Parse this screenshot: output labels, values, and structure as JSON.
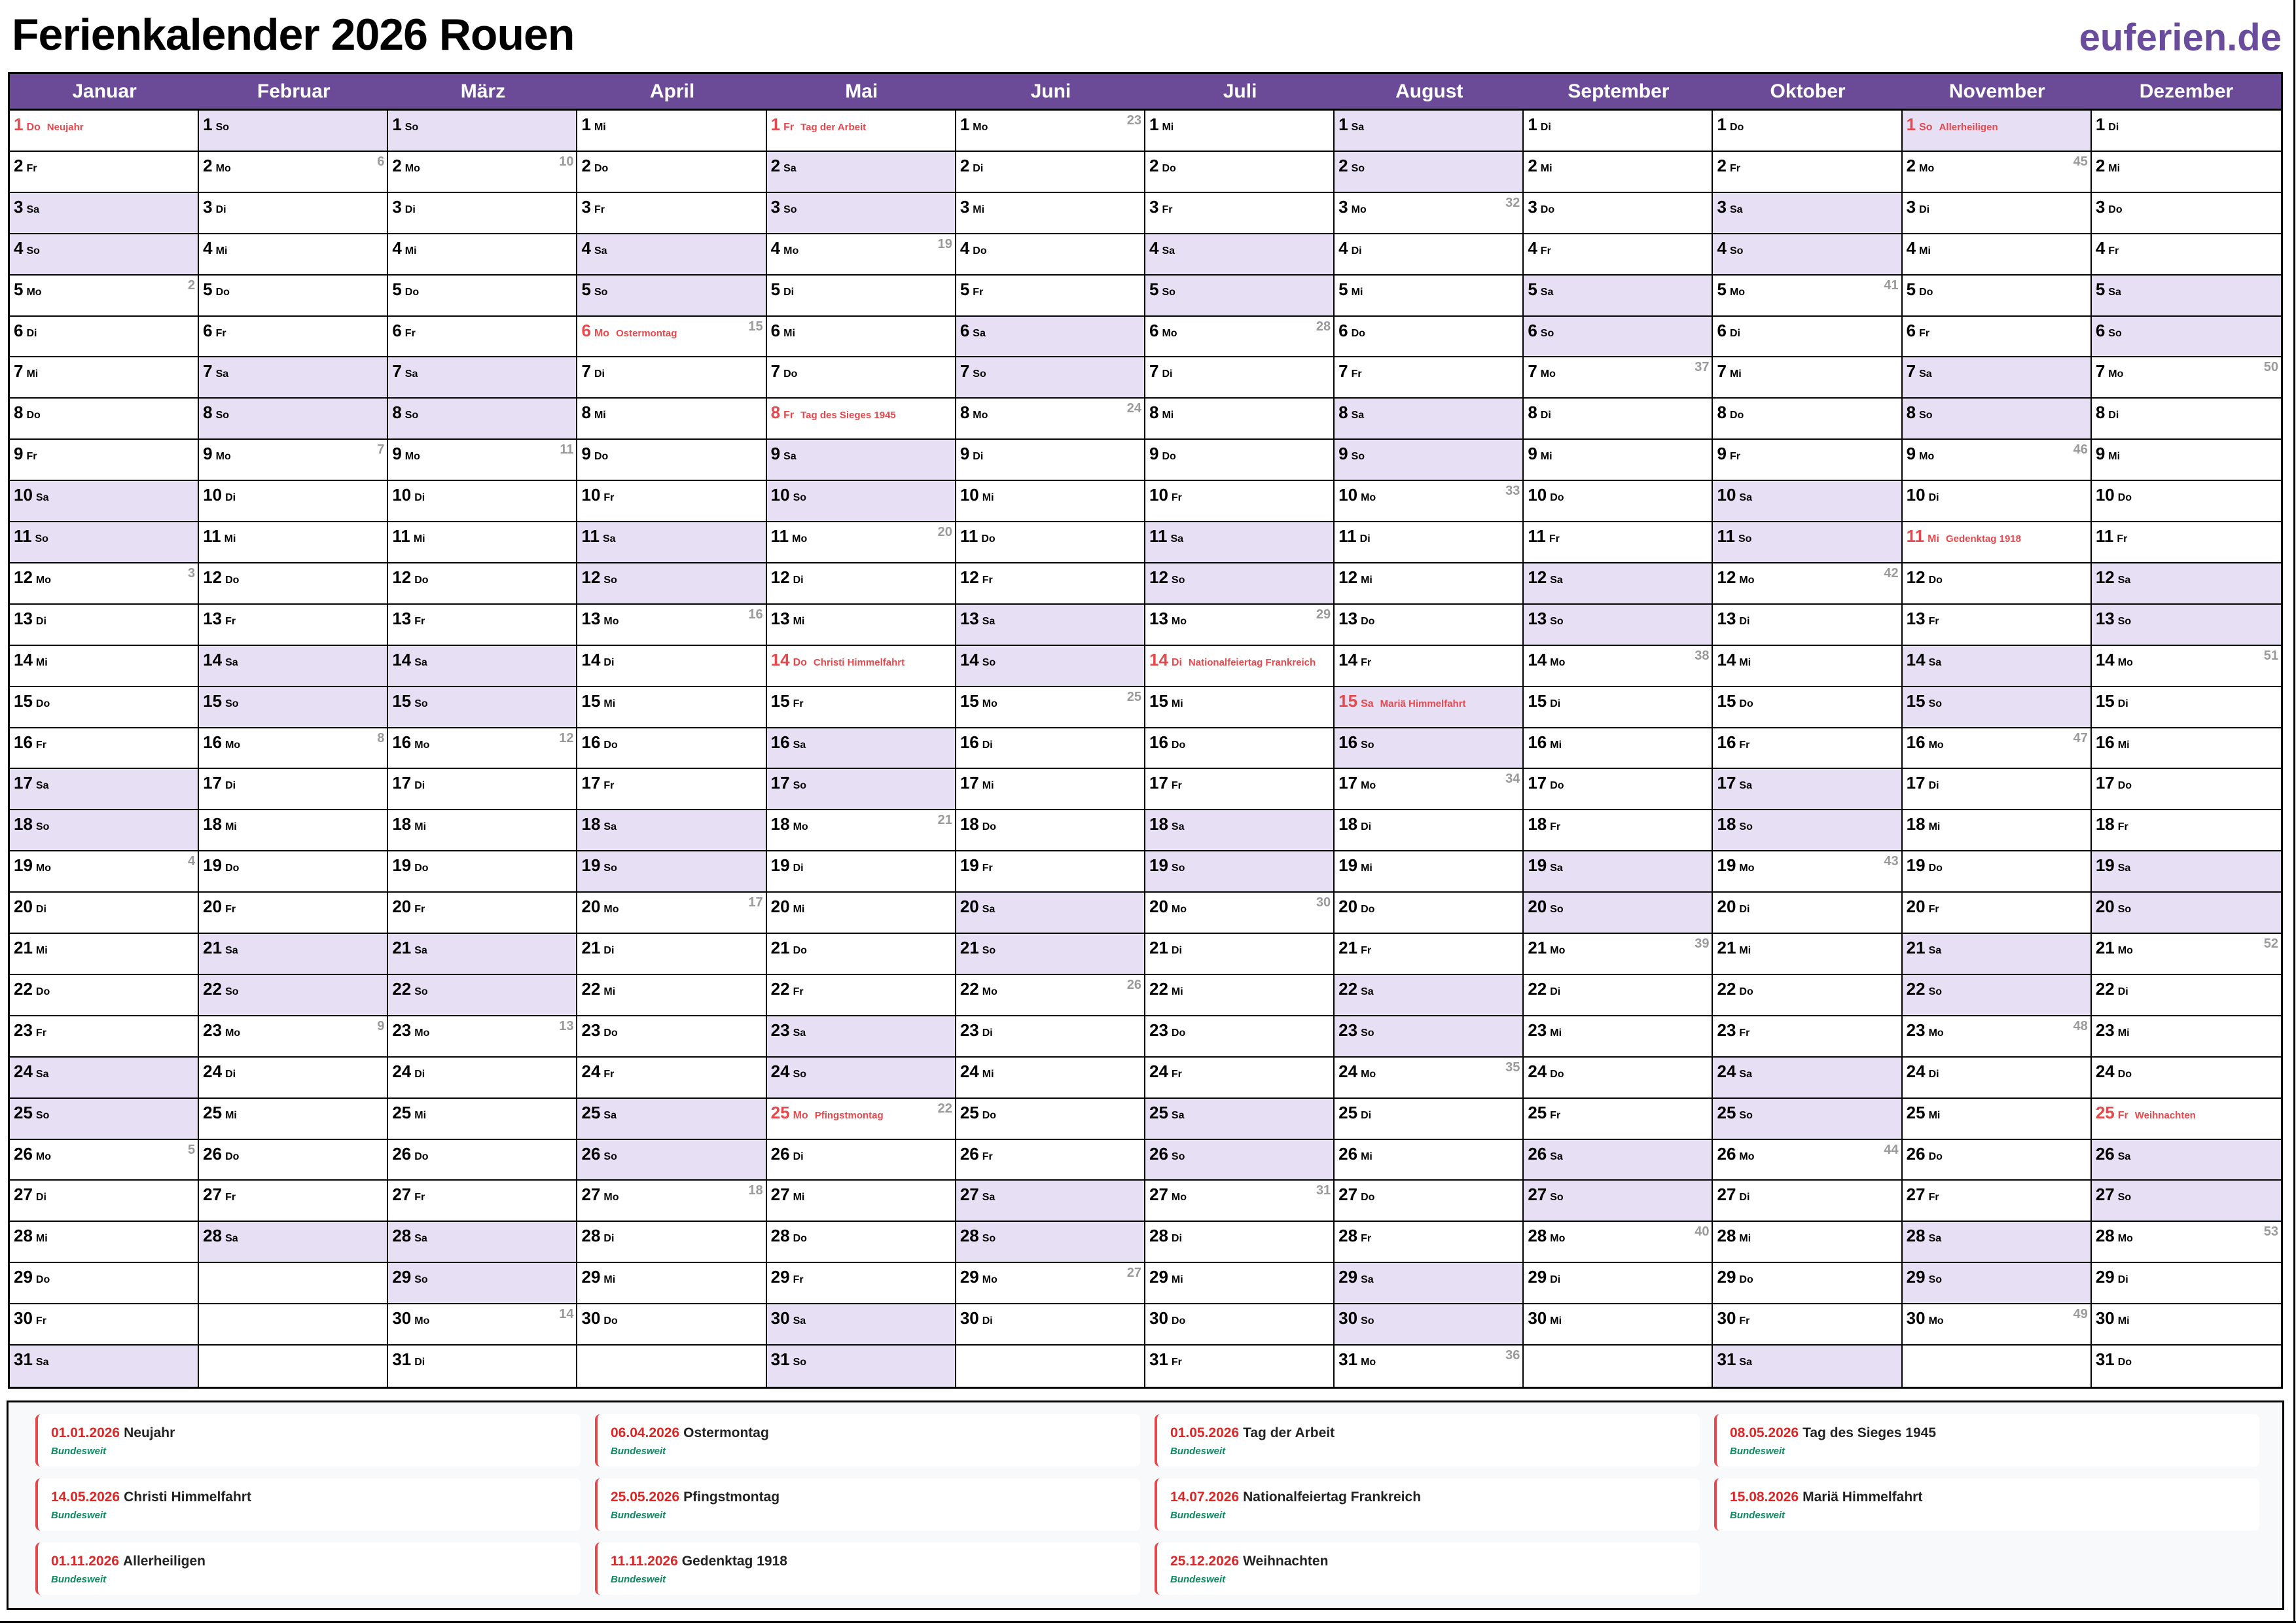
{
  "title": "Ferienkalender 2026 Rouen",
  "brand": "euferien.de",
  "colors": {
    "header": "#6b4b97",
    "weekend": "#e7dff4",
    "holiday": "#e5484d",
    "region": "#0e8a5f"
  },
  "weekday_names": [
    "Mo",
    "Di",
    "Mi",
    "Do",
    "Fr",
    "Sa",
    "So"
  ],
  "weekend_days": [
    "Sa",
    "So"
  ],
  "months": [
    {
      "name": "Januar",
      "days": 31,
      "first_weekday": "Do",
      "weeks": {
        "5": "2",
        "12": "3",
        "19": "4",
        "26": "5"
      }
    },
    {
      "name": "Februar",
      "days": 28,
      "first_weekday": "So",
      "weeks": {
        "2": "6",
        "9": "7",
        "16": "8",
        "23": "9"
      }
    },
    {
      "name": "März",
      "days": 31,
      "first_weekday": "So",
      "weeks": {
        "2": "10",
        "9": "11",
        "16": "12",
        "23": "13",
        "30": "14"
      }
    },
    {
      "name": "April",
      "days": 30,
      "first_weekday": "Mi",
      "weeks": {
        "6": "15",
        "13": "16",
        "20": "17",
        "27": "18"
      }
    },
    {
      "name": "Mai",
      "days": 31,
      "first_weekday": "Fr",
      "weeks": {
        "4": "19",
        "11": "20",
        "18": "21",
        "25": "22"
      }
    },
    {
      "name": "Juni",
      "days": 30,
      "first_weekday": "Mo",
      "weeks": {
        "1": "23",
        "8": "24",
        "15": "25",
        "22": "26",
        "29": "27"
      }
    },
    {
      "name": "Juli",
      "days": 31,
      "first_weekday": "Mi",
      "weeks": {
        "6": "28",
        "13": "29",
        "20": "30",
        "27": "31"
      }
    },
    {
      "name": "August",
      "days": 31,
      "first_weekday": "Sa",
      "weeks": {
        "3": "32",
        "10": "33",
        "17": "34",
        "24": "35",
        "31": "36"
      }
    },
    {
      "name": "September",
      "days": 30,
      "first_weekday": "Di",
      "weeks": {
        "7": "37",
        "14": "38",
        "21": "39",
        "28": "40"
      }
    },
    {
      "name": "Oktober",
      "days": 31,
      "first_weekday": "Do",
      "weeks": {
        "5": "41",
        "12": "42",
        "19": "43",
        "26": "44"
      }
    },
    {
      "name": "November",
      "days": 30,
      "first_weekday": "So",
      "weeks": {
        "2": "45",
        "9": "46",
        "16": "47",
        "23": "48",
        "30": "49"
      }
    },
    {
      "name": "Dezember",
      "days": 31,
      "first_weekday": "Di",
      "weeks": {
        "7": "50",
        "14": "51",
        "21": "52",
        "28": "53"
      }
    }
  ],
  "calendar_holidays": [
    {
      "month": 1,
      "day": 1,
      "label": "Neujahr"
    },
    {
      "month": 4,
      "day": 6,
      "label": "Ostermontag"
    },
    {
      "month": 5,
      "day": 1,
      "label": "Tag der Arbeit"
    },
    {
      "month": 5,
      "day": 8,
      "label": "Tag des Sieges 1945"
    },
    {
      "month": 5,
      "day": 14,
      "label": "Christi Himmelfahrt"
    },
    {
      "month": 5,
      "day": 25,
      "label": "Pfingstmontag"
    },
    {
      "month": 7,
      "day": 14,
      "label": "Nationalfeiertag Frankreich"
    },
    {
      "month": 8,
      "day": 15,
      "label": "Mariä Himmelfahrt"
    },
    {
      "month": 11,
      "day": 1,
      "label": "Allerheiligen"
    },
    {
      "month": 11,
      "day": 11,
      "label": "Gedenktag 1918"
    },
    {
      "month": 12,
      "day": 25,
      "label": "Weihnachten"
    }
  ],
  "holiday_list": [
    {
      "date": "01.01.2026",
      "name": "Neujahr",
      "region": "Bundesweit"
    },
    {
      "date": "06.04.2026",
      "name": "Ostermontag",
      "region": "Bundesweit"
    },
    {
      "date": "01.05.2026",
      "name": "Tag der Arbeit",
      "region": "Bundesweit"
    },
    {
      "date": "08.05.2026",
      "name": "Tag des Sieges 1945",
      "region": "Bundesweit"
    },
    {
      "date": "14.05.2026",
      "name": "Christi Himmelfahrt",
      "region": "Bundesweit"
    },
    {
      "date": "25.05.2026",
      "name": "Pfingstmontag",
      "region": "Bundesweit"
    },
    {
      "date": "14.07.2026",
      "name": "Nationalfeiertag Frankreich",
      "region": "Bundesweit"
    },
    {
      "date": "15.08.2026",
      "name": "Mariä Himmelfahrt",
      "region": "Bundesweit"
    },
    {
      "date": "01.11.2026",
      "name": "Allerheiligen",
      "region": "Bundesweit"
    },
    {
      "date": "11.11.2026",
      "name": "Gedenktag 1918",
      "region": "Bundesweit"
    },
    {
      "date": "25.12.2026",
      "name": "Weihnachten",
      "region": "Bundesweit"
    }
  ]
}
